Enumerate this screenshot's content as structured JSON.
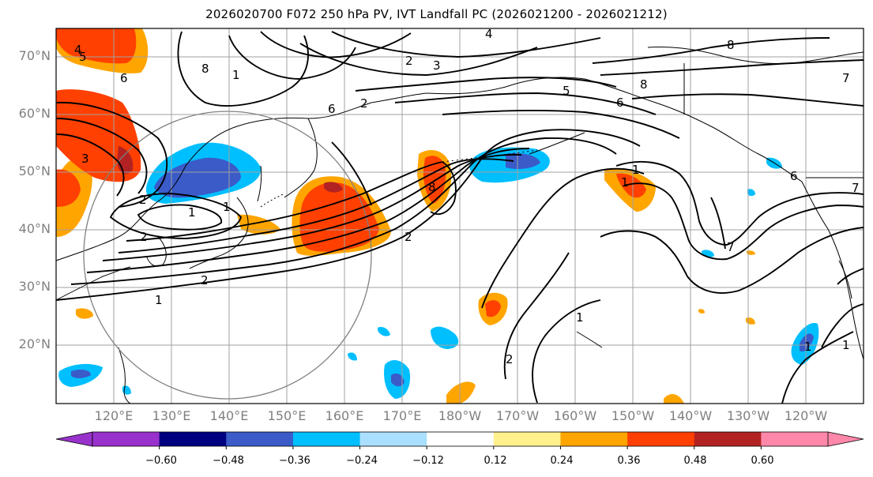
{
  "title": "2026020700 F072 250 hPa PV, IVT Landfall PC (2026021200 - 2026021212)",
  "lat_labels": [
    "70°N",
    "60°N",
    "50°N",
    "40°N",
    "30°N",
    "20°N"
  ],
  "lon_labels": [
    "120°E",
    "130°E",
    "140°E",
    "150°E",
    "160°E",
    "170°E",
    "180°W",
    "170°W",
    "160°W",
    "150°W",
    "140°W",
    "130°W",
    "120°W"
  ],
  "colorbar": {
    "colors": [
      "#9932cc",
      "#000080",
      "#3a5bc8",
      "#00bfff",
      "#aadfff",
      "#ffffff",
      "#fff08c",
      "#ffa500",
      "#ff4000",
      "#b22222",
      "#ff88aa"
    ],
    "tick_labels": [
      "−0.60",
      "−0.48",
      "−0.36",
      "−0.24",
      "−0.12",
      "0.12",
      "0.24",
      "0.36",
      "0.48",
      "0.60"
    ]
  },
  "contour_labels": [
    "4",
    "5",
    "6",
    "8",
    "1",
    "4",
    "8",
    "2",
    "3",
    "5",
    "6",
    "7",
    "6",
    "2",
    "3",
    "2",
    "1",
    "1",
    "2",
    "2",
    "1",
    "2",
    "8",
    "1",
    "1",
    "8",
    "6",
    "7",
    "2",
    "1",
    "7",
    "1",
    "1"
  ]
}
